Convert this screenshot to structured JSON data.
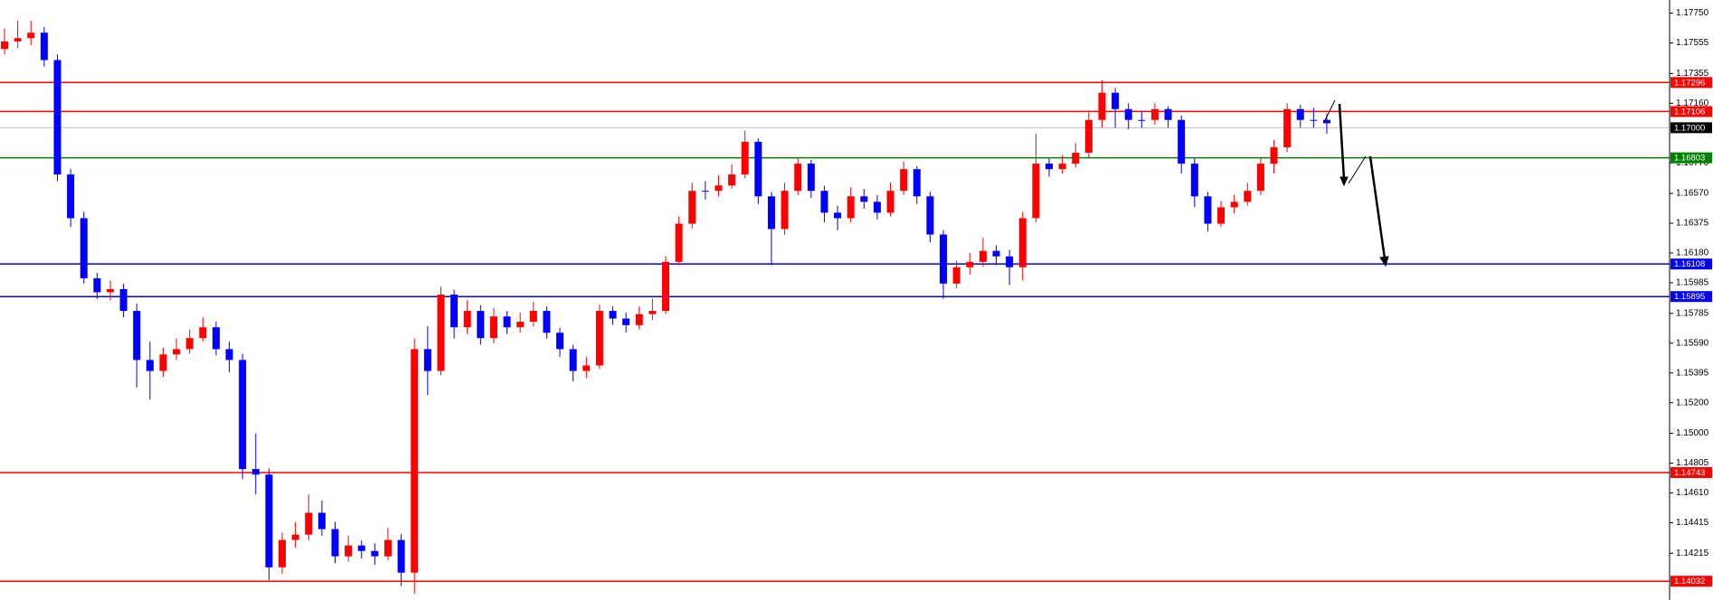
{
  "chart_data": {
    "type": "candlestick",
    "ylim": [
      1.13909,
      1.17836
    ],
    "yticks": [
      {
        "value": 1.1775,
        "label": "1.17750"
      },
      1.17555,
      1.17355,
      {
        "value": 1.1716,
        "label": "1.17160"
      },
      {
        "value": 1.1677,
        "label": "1.16770"
      },
      {
        "value": 1.1657,
        "label": "1.16570"
      },
      1.16375,
      {
        "value": 1.1618,
        "label": "1.16180"
      },
      1.15985,
      1.15785,
      {
        "value": 1.1559,
        "label": "1.15590"
      },
      1.15395,
      {
        "value": 1.152,
        "label": "1.15200"
      },
      {
        "value": 1.15,
        "label": "1.15000"
      },
      1.14805,
      {
        "value": 1.1461,
        "label": "1.14610"
      },
      1.14415,
      1.14215
    ],
    "up_color": "#ff0000",
    "down_color": "#0000ff",
    "levels": [
      {
        "value": 1.17296,
        "label": "1.17296",
        "color": "#ff0000"
      },
      {
        "value": 1.17106,
        "label": "1.17106",
        "color": "#ff0000"
      },
      {
        "value": 1.17,
        "label": "1.17000",
        "color": "#000000"
      },
      {
        "value": 1.16803,
        "label": "1.16803",
        "color": "#008000"
      },
      {
        "value": 1.16108,
        "label": "1.16108",
        "color": "#0000ff"
      },
      {
        "value": 1.15895,
        "label": "1.15895",
        "color": "#0000ff"
      },
      {
        "value": 1.14743,
        "label": "1.14743",
        "color": "#ff0000"
      },
      {
        "value": 1.14032,
        "label": "1.14032",
        "color": "#ff0000"
      }
    ],
    "open": [
      1.17515,
      1.17565,
      1.17586,
      1.17622,
      1.17443,
      1.16694,
      1.16408,
      1.16015,
      1.15923,
      1.15944,
      1.15801,
      1.1548,
      1.15408,
      1.15516,
      1.15551,
      1.15623,
      1.15694,
      1.15551,
      1.1548,
      1.14766,
      1.1473,
      1.14123,
      1.14302,
      1.14337,
      1.1448,
      1.14373,
      1.14195,
      1.14266,
      1.1423,
      1.14195,
      1.14302,
      1.14088,
      1.15551,
      1.15408,
      1.15908,
      1.15694,
      1.15801,
      1.15623,
      1.15765,
      1.15694,
      1.1573,
      1.15801,
      1.15658,
      1.15551,
      1.15408,
      1.15444,
      1.15801,
      1.15751,
      1.15708,
      1.1578,
      1.15801,
      1.16122,
      1.16372,
      1.16587,
      1.16587,
      1.16622,
      1.16694,
      1.16908,
      1.16551,
      1.16337,
      1.16587,
      1.16765,
      1.16587,
      1.16444,
      1.16408,
      1.16551,
      1.16515,
      1.16444,
      1.16587,
      1.16729,
      1.16551,
      1.16301,
      1.1598,
      1.16087,
      1.16122,
      1.16194,
      1.16158,
      1.16087,
      1.16408,
      1.16765,
      1.16729,
      1.16765,
      1.16836,
      1.17051,
      1.17229,
      1.17122,
      1.17051,
      1.17051,
      1.17122,
      1.17051,
      1.16765,
      1.16551,
      1.16372,
      1.16479,
      1.16515,
      1.16587,
      1.16765,
      1.16872,
      1.17122,
      1.17051,
      1.17051
    ],
    "high": [
      1.1765,
      1.177,
      1.177,
      1.1766,
      1.1748,
      1.1673,
      1.1645,
      1.1605,
      1.16,
      1.1598,
      1.1585,
      1.156,
      1.1556,
      1.1562,
      1.1568,
      1.1576,
      1.1573,
      1.156,
      1.1552,
      1.15,
      1.1477,
      1.1435,
      1.1442,
      1.146,
      1.1456,
      1.1442,
      1.1433,
      1.143,
      1.1428,
      1.1438,
      1.1434,
      1.1562,
      1.157,
      1.1596,
      1.1594,
      1.1587,
      1.1584,
      1.1582,
      1.158,
      1.1579,
      1.1586,
      1.1583,
      1.1569,
      1.1558,
      1.155,
      1.1584,
      1.1583,
      1.1579,
      1.1583,
      1.1588,
      1.1616,
      1.1642,
      1.1664,
      1.1665,
      1.1669,
      1.1676,
      1.1698,
      1.1693,
      1.1658,
      1.1664,
      1.168,
      1.1679,
      1.1662,
      1.1649,
      1.1661,
      1.166,
      1.1656,
      1.1664,
      1.1678,
      1.1675,
      1.1658,
      1.1633,
      1.1613,
      1.1618,
      1.1628,
      1.1623,
      1.162,
      1.1645,
      1.1696,
      1.168,
      1.1682,
      1.169,
      1.171,
      1.1731,
      1.1726,
      1.1716,
      1.1711,
      1.1716,
      1.1714,
      1.1708,
      1.168,
      1.1658,
      1.1652,
      1.1656,
      1.1664,
      1.168,
      1.1692,
      1.1716,
      1.1715,
      1.1713,
      1.1709
    ],
    "low": [
      1.1748,
      1.1752,
      1.1754,
      1.174,
      1.1665,
      1.1635,
      1.1598,
      1.1588,
      1.1587,
      1.1576,
      1.153,
      1.1522,
      1.1537,
      1.1548,
      1.1552,
      1.156,
      1.1551,
      1.154,
      1.147,
      1.146,
      1.1404,
      1.1408,
      1.1425,
      1.143,
      1.1433,
      1.1415,
      1.1416,
      1.1418,
      1.1414,
      1.1417,
      1.14,
      1.1395,
      1.1525,
      1.1538,
      1.1562,
      1.1565,
      1.1558,
      1.1559,
      1.1565,
      1.1566,
      1.157,
      1.1562,
      1.155,
      1.1534,
      1.1536,
      1.1542,
      1.1571,
      1.1566,
      1.1568,
      1.1574,
      1.1578,
      1.161,
      1.1634,
      1.1653,
      1.1655,
      1.166,
      1.1667,
      1.165,
      1.161,
      1.163,
      1.1656,
      1.1654,
      1.1638,
      1.1633,
      1.1638,
      1.1647,
      1.164,
      1.1642,
      1.1656,
      1.165,
      1.1625,
      1.1588,
      1.1595,
      1.1604,
      1.1609,
      1.161,
      1.1597,
      1.16,
      1.1638,
      1.1668,
      1.167,
      1.1674,
      1.168,
      1.17,
      1.17,
      1.1699,
      1.17,
      1.1702,
      1.17,
      1.167,
      1.1648,
      1.1632,
      1.1635,
      1.1644,
      1.1649,
      1.1656,
      1.167,
      1.1684,
      1.17,
      1.17,
      1.1696
    ],
    "close": [
      1.17565,
      1.17586,
      1.17622,
      1.17443,
      1.16694,
      1.16408,
      1.16015,
      1.15923,
      1.15944,
      1.15801,
      1.1548,
      1.15408,
      1.15516,
      1.15551,
      1.15623,
      1.15694,
      1.15551,
      1.1548,
      1.14766,
      1.1473,
      1.14123,
      1.14302,
      1.14337,
      1.1448,
      1.14373,
      1.14195,
      1.14266,
      1.1423,
      1.14195,
      1.14302,
      1.14088,
      1.15551,
      1.15408,
      1.15908,
      1.15694,
      1.15801,
      1.15623,
      1.15765,
      1.15694,
      1.1573,
      1.15801,
      1.15658,
      1.15551,
      1.15408,
      1.15444,
      1.15801,
      1.15751,
      1.15708,
      1.1578,
      1.15801,
      1.16122,
      1.16372,
      1.16587,
      1.16587,
      1.16622,
      1.16694,
      1.16908,
      1.16551,
      1.16337,
      1.16587,
      1.16765,
      1.16587,
      1.16444,
      1.16408,
      1.16551,
      1.16515,
      1.16444,
      1.16587,
      1.16729,
      1.16551,
      1.16301,
      1.1598,
      1.16087,
      1.16122,
      1.16194,
      1.16158,
      1.16087,
      1.16408,
      1.16765,
      1.16729,
      1.16765,
      1.16836,
      1.17051,
      1.17229,
      1.17122,
      1.17051,
      1.17051,
      1.17122,
      1.17051,
      1.16765,
      1.16551,
      1.16372,
      1.16479,
      1.16515,
      1.16587,
      1.16765,
      1.16872,
      1.17122,
      1.17051,
      1.17051,
      1.17029
    ]
  }
}
